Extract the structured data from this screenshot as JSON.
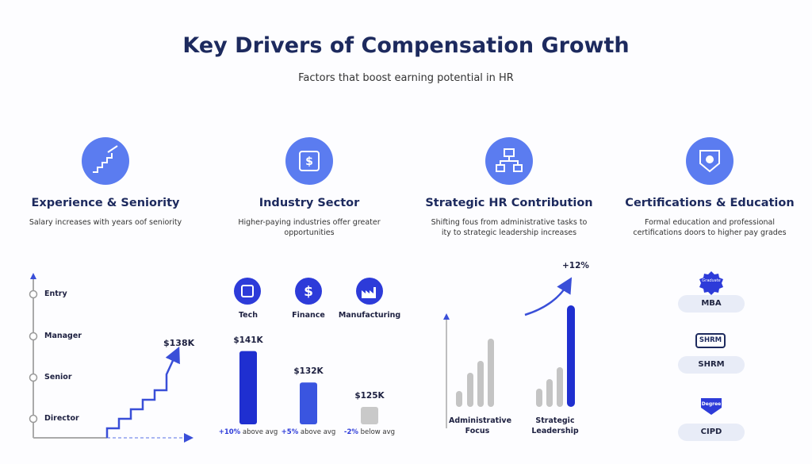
{
  "header": {
    "title": "Key Drivers of Compensation Growth",
    "subtitle": "Factors that boost earning potential in HR"
  },
  "columns": [
    {
      "heading": "Experience & Seniority",
      "description": "Salary increases with years oof seniority"
    },
    {
      "heading": "Industry Sector",
      "description": "Higher-paying industries offer greater opportunities"
    },
    {
      "heading": "Strategic HR Contribution",
      "description": "Shifting fous from administrative tasks to ity to strategic leadership increases"
    },
    {
      "heading": "Certifications & Education",
      "description": "Formal education and professional certifications doors to higher pay grades"
    }
  ],
  "experience": {
    "levels": [
      "Entry",
      "Manager",
      "Senior",
      "Director"
    ],
    "salary_label": "$138K"
  },
  "industry": {
    "type": "bar",
    "categories": [
      "Tech",
      "Finance",
      "Manufacturing"
    ],
    "values": [
      141,
      132,
      125
    ],
    "value_labels": [
      "$141K",
      "$132K",
      "$125K"
    ],
    "colors": [
      "#1f2fd0",
      "#3a55e0",
      "#c9c9c9"
    ],
    "ylim": [
      120,
      145
    ],
    "notes": [
      {
        "change": "+10%",
        "text": "above avg"
      },
      {
        "change": "+5%",
        "text": "above avg"
      },
      {
        "change": "-2%",
        "text": "below avg"
      }
    ]
  },
  "strategic": {
    "change_label": "+12%",
    "groups": [
      "Administrative Focus",
      "Strategic Leadership"
    ]
  },
  "certifications": [
    {
      "badge": "Graduate",
      "name": "MBA"
    },
    {
      "badge": "SHRM",
      "name": "SHRM"
    },
    {
      "badge": "Degree",
      "name": "CIPD"
    }
  ]
}
